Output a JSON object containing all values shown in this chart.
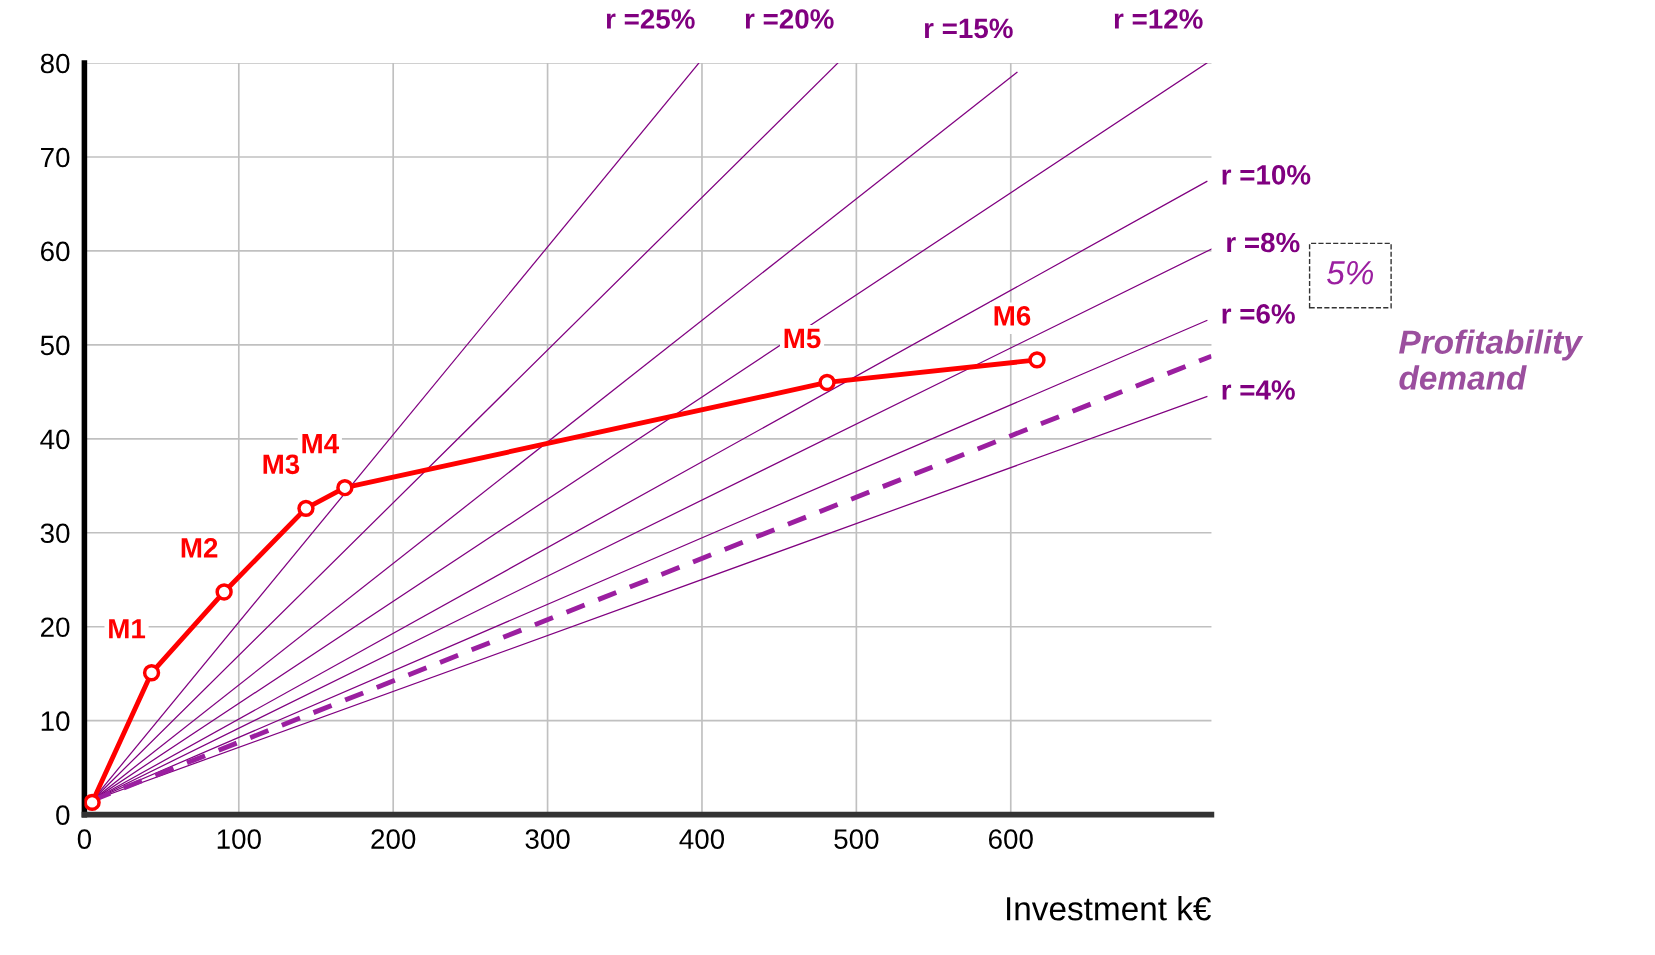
{
  "chart_data": {
    "type": "line",
    "xlabel": "Investment k€",
    "xlim": [
      0,
      730
    ],
    "ylim": [
      0,
      80
    ],
    "xticks": [
      0,
      100,
      200,
      300,
      400,
      500,
      600
    ],
    "yticks": [
      0,
      10,
      20,
      30,
      40,
      50,
      60,
      70,
      80
    ],
    "grid": true,
    "series": [
      {
        "name": "r =25%",
        "color": "#800080",
        "line_style": "solid",
        "x": [
          5,
          398
        ],
        "values": [
          1.5,
          80
        ]
      },
      {
        "name": "r =20%",
        "color": "#800080",
        "line_style": "solid",
        "x": [
          5,
          488
        ],
        "values": [
          1.5,
          80
        ]
      },
      {
        "name": "r =15%",
        "color": "#800080",
        "line_style": "solid",
        "x": [
          5,
          604
        ],
        "values": [
          1.5,
          79
        ]
      },
      {
        "name": "r =12%",
        "color": "#800080",
        "line_style": "solid",
        "x": [
          5,
          727
        ],
        "values": [
          1.5,
          80
        ]
      },
      {
        "name": "r =10%",
        "color": "#800080",
        "line_style": "solid",
        "x": [
          5,
          727
        ],
        "values": [
          1.5,
          67.4
        ]
      },
      {
        "name": "r =8%",
        "color": "#800080",
        "line_style": "solid",
        "x": [
          5,
          730
        ],
        "values": [
          1.5,
          60.2
        ]
      },
      {
        "name": "r =6%",
        "color": "#800080",
        "line_style": "solid",
        "x": [
          5,
          727
        ],
        "values": [
          1.5,
          52.6
        ]
      },
      {
        "name": "r =4%",
        "color": "#800080",
        "line_style": "solid",
        "x": [
          5,
          727
        ],
        "values": [
          1.5,
          44.5
        ]
      },
      {
        "name": "5%",
        "color": "#9b1fa0",
        "line_style": "dashed",
        "x": [
          5,
          730
        ],
        "values": [
          1.5,
          48.8
        ]
      },
      {
        "color": "#ff0000",
        "line_style": "solid",
        "marker": "circle",
        "x": [
          5,
          43.5,
          90.5,
          143.5,
          168.7,
          481,
          617
        ],
        "values": [
          1.3,
          15.1,
          23.7,
          32.6,
          34.8,
          46.0,
          48.4
        ]
      }
    ],
    "annotations": [
      {
        "text": "M1",
        "x": 43.5,
        "y": 15.1
      },
      {
        "text": "M2",
        "x": 90.5,
        "y": 23.7
      },
      {
        "text": "M3",
        "x": 143.5,
        "y": 32.6
      },
      {
        "text": "M4",
        "x": 168.7,
        "y": 34.8
      },
      {
        "text": "M5",
        "x": 481,
        "y": 46.0
      },
      {
        "text": "M6",
        "x": 617,
        "y": 48.4
      },
      "Profitability\ndemand"
    ]
  }
}
